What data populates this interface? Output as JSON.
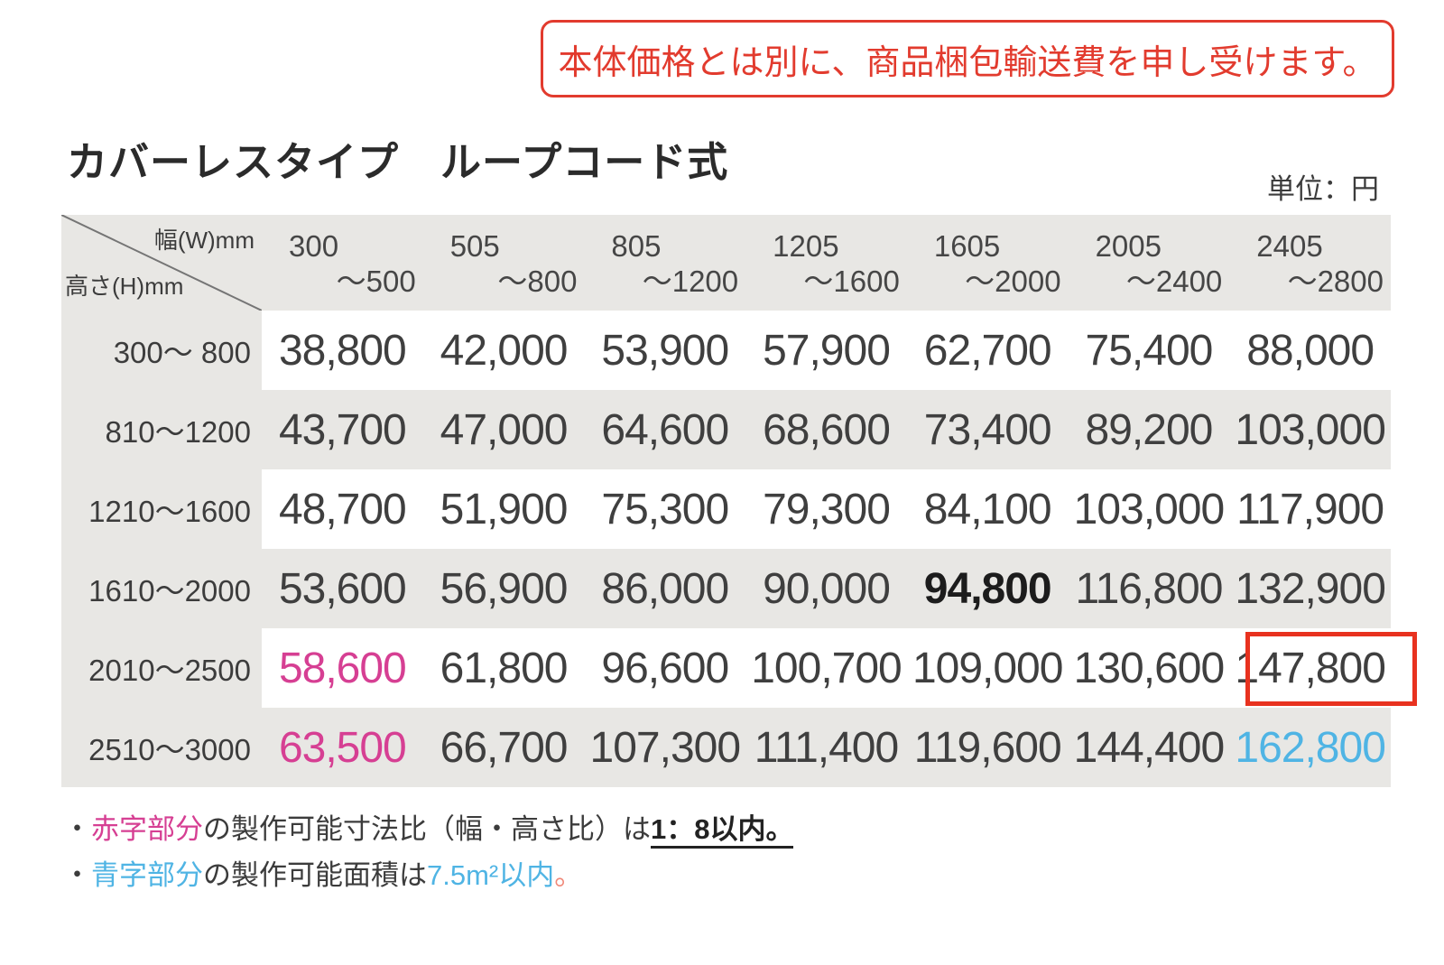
{
  "notice": {
    "text": "本体価格とは別に、商品梱包輸送費を申し受けます。"
  },
  "title": "カバーレスタイプ　ループコード式",
  "unit_label": "単位：円",
  "table": {
    "corner": {
      "width_label": "幅(W)mm",
      "height_label": "高さ(H)mm"
    },
    "col_headers": [
      {
        "min": "300",
        "max": "～500"
      },
      {
        "min": "505",
        "max": "～800"
      },
      {
        "min": "805",
        "max": "～1200"
      },
      {
        "min": "1205",
        "max": "～1600"
      },
      {
        "min": "1605",
        "max": "～2000"
      },
      {
        "min": "2005",
        "max": "～2400"
      },
      {
        "min": "2405",
        "max": "～2800"
      }
    ],
    "rows": [
      {
        "header": "300～ 800",
        "cells": [
          {
            "v": "38,800"
          },
          {
            "v": "42,000"
          },
          {
            "v": "53,900"
          },
          {
            "v": "57,900"
          },
          {
            "v": "62,700"
          },
          {
            "v": "75,400"
          },
          {
            "v": "88,000"
          }
        ]
      },
      {
        "header": "810～1200",
        "cells": [
          {
            "v": "43,700"
          },
          {
            "v": "47,000"
          },
          {
            "v": "64,600"
          },
          {
            "v": "68,600"
          },
          {
            "v": "73,400"
          },
          {
            "v": "89,200"
          },
          {
            "v": "103,000"
          }
        ]
      },
      {
        "header": "1210～1600",
        "cells": [
          {
            "v": "48,700"
          },
          {
            "v": "51,900"
          },
          {
            "v": "75,300"
          },
          {
            "v": "79,300"
          },
          {
            "v": "84,100"
          },
          {
            "v": "103,000"
          },
          {
            "v": "117,900"
          }
        ]
      },
      {
        "header": "1610～2000",
        "cells": [
          {
            "v": "53,600"
          },
          {
            "v": "56,900"
          },
          {
            "v": "86,000"
          },
          {
            "v": "90,000"
          },
          {
            "v": "94,800",
            "s": "bold"
          },
          {
            "v": "116,800"
          },
          {
            "v": "132,900"
          }
        ]
      },
      {
        "header": "2010～2500",
        "cells": [
          {
            "v": "58,600",
            "s": "pink"
          },
          {
            "v": "61,800"
          },
          {
            "v": "96,600"
          },
          {
            "v": "100,700"
          },
          {
            "v": "109,000"
          },
          {
            "v": "130,600"
          },
          {
            "v": "147,800",
            "s": "boxed"
          }
        ]
      },
      {
        "header": "2510～3000",
        "cells": [
          {
            "v": "63,500",
            "s": "pink"
          },
          {
            "v": "66,700"
          },
          {
            "v": "107,300"
          },
          {
            "v": "111,400"
          },
          {
            "v": "119,600"
          },
          {
            "v": "144,400"
          },
          {
            "v": "162,800",
            "s": "blue"
          }
        ]
      }
    ]
  },
  "footnotes": [
    {
      "parts": [
        {
          "t": "・"
        },
        {
          "t": "赤字部分",
          "s": "pink"
        },
        {
          "t": "の製作可能寸法比（幅・高さ比）は"
        },
        {
          "t": "1：8以内。",
          "s": "bold-underline"
        }
      ]
    },
    {
      "parts": [
        {
          "t": "・"
        },
        {
          "t": "青字部分",
          "s": "blue"
        },
        {
          "t": "の製作可能面積は"
        },
        {
          "t": "7.5m²以内",
          "s": "blue"
        },
        {
          "t": "。",
          "s": "salmon"
        }
      ]
    }
  ],
  "colors": {
    "notice_red": "#e23b2e",
    "highlight_box_red": "#e8321f",
    "pink_price": "#d63f93",
    "blue_price": "#4fb4e4",
    "text_dark": "#3c3c3c",
    "table_gray": "#e8e7e4",
    "row_white": "#ffffff"
  }
}
